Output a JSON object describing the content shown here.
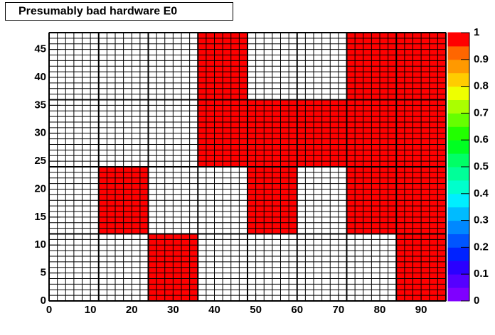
{
  "chart_data": {
    "type": "heatmap",
    "title": "Presumably bad hardware E0",
    "xbins": [
      0,
      12,
      24,
      36,
      48,
      60,
      72,
      84,
      96
    ],
    "ybins": [
      0,
      12,
      24,
      36,
      48
    ],
    "values": [
      [
        0,
        0,
        1,
        0,
        0,
        0,
        0,
        1
      ],
      [
        0,
        1,
        0,
        0,
        1,
        0,
        1,
        1
      ],
      [
        0,
        0,
        0,
        1,
        1,
        1,
        1,
        1
      ],
      [
        0,
        0,
        0,
        1,
        0,
        0,
        1,
        1
      ]
    ],
    "xlim": [
      0,
      96
    ],
    "ylim": [
      0,
      48
    ],
    "zlim": [
      0,
      1
    ],
    "xticks": [
      0,
      10,
      20,
      30,
      40,
      50,
      60,
      70,
      80,
      90
    ],
    "yticks": [
      0,
      5,
      10,
      15,
      20,
      25,
      30,
      35,
      40,
      45
    ],
    "zticks": [
      0,
      0.1,
      0.2,
      0.3,
      0.4,
      0.5,
      0.6,
      0.7,
      0.8,
      0.9,
      1
    ],
    "colorscale": [
      "#7f00ff",
      "#5500ff",
      "#2a00ff",
      "#0022ff",
      "#0055ff",
      "#0088ff",
      "#00bbff",
      "#00eeff",
      "#00ffcc",
      "#00ff99",
      "#00ff66",
      "#00ff22",
      "#22ff00",
      "#66ff00",
      "#aaff00",
      "#eeff00",
      "#ffcc00",
      "#ff9900",
      "#ff6600",
      "#ff0000"
    ]
  }
}
